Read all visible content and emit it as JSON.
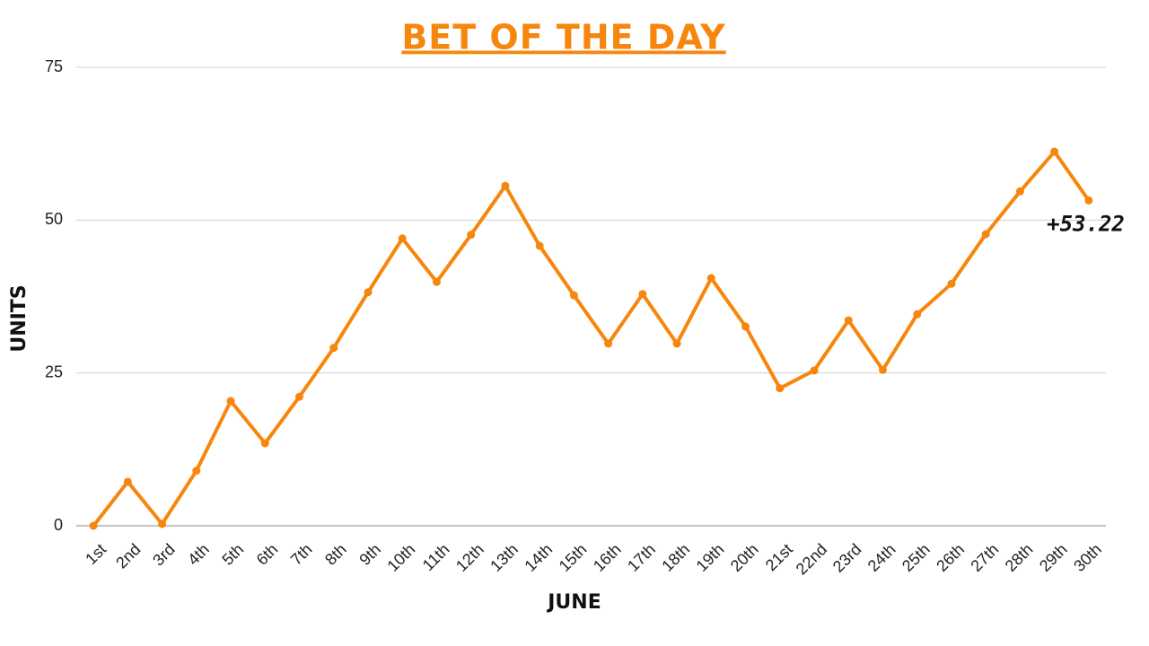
{
  "chart_data": {
    "type": "line",
    "title": "BET OF THE DAY",
    "x_label": "JUNE",
    "y_label": "UNITS",
    "categories": [
      "1st",
      "2nd",
      "3rd",
      "4th",
      "5th",
      "6th",
      "7th",
      "8th",
      "9th",
      "10th",
      "11th",
      "12th",
      "13th",
      "14th",
      "15th",
      "16th",
      "17th",
      "18th",
      "19th",
      "20th",
      "21st",
      "22nd",
      "23rd",
      "24th",
      "25th",
      "26th",
      "27th",
      "28th",
      "29th",
      "30th"
    ],
    "series": [
      {
        "name": "Units",
        "color": "#f7860c",
        "values": [
          0,
          7.2,
          0.3,
          9.0,
          20.4,
          13.5,
          21.1,
          29.1,
          38.2,
          47.0,
          39.9,
          47.6,
          55.6,
          45.8,
          37.7,
          29.8,
          37.9,
          29.8,
          40.5,
          32.6,
          22.5,
          25.4,
          33.6,
          25.5,
          34.6,
          39.6,
          47.7,
          54.7,
          61.2,
          53.22
        ]
      }
    ],
    "annotation": "+53.22",
    "ylim": [
      0,
      75
    ],
    "yticks": [
      0,
      25,
      50,
      75
    ],
    "grid": true
  }
}
